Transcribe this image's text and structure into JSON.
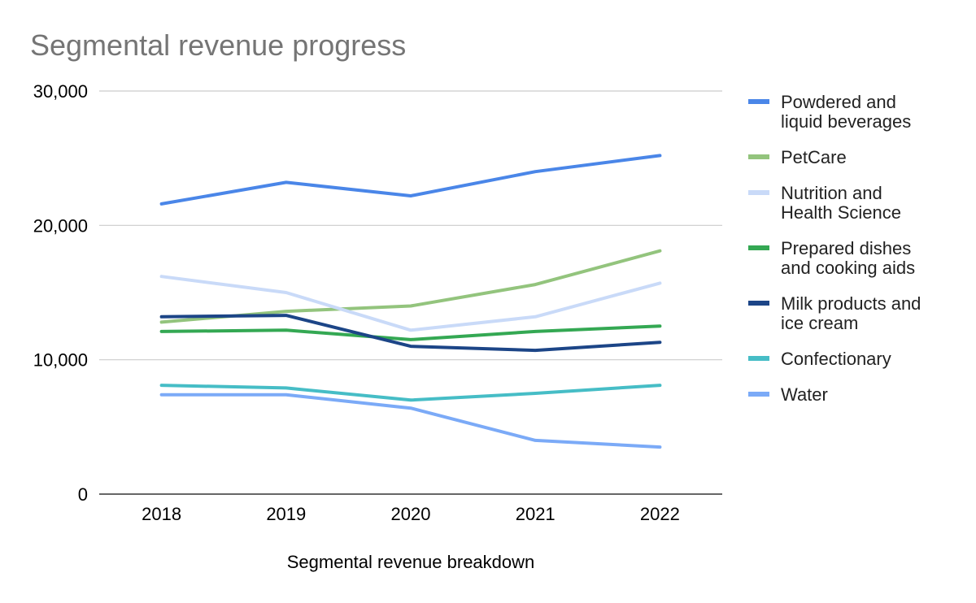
{
  "chart_data": {
    "type": "line",
    "title": "Segmental revenue progress",
    "xlabel": "Segmental revenue breakdown",
    "ylabel": "",
    "categories": [
      "2018",
      "2019",
      "2020",
      "2021",
      "2022"
    ],
    "ylim": [
      0,
      30000
    ],
    "yticks": [
      {
        "value": 0,
        "label": "0"
      },
      {
        "value": 10000,
        "label": "10,000"
      },
      {
        "value": 20000,
        "label": "20,000"
      },
      {
        "value": 30000,
        "label": "30,000"
      }
    ],
    "grid": true,
    "legend_position": "right",
    "series": [
      {
        "name": "Powdered and liquid beverages",
        "legend_lines": [
          "Powdered and",
          "liquid beverages"
        ],
        "color": "#4a86e8",
        "values": [
          21600,
          23200,
          22200,
          24000,
          25200
        ]
      },
      {
        "name": "PetCare",
        "legend_lines": [
          "PetCare"
        ],
        "color": "#93c47d",
        "values": [
          12800,
          13600,
          14000,
          15600,
          18100
        ]
      },
      {
        "name": "Nutrition and Health Science",
        "legend_lines": [
          "Nutrition and",
          "Health Science"
        ],
        "color": "#c9daf8",
        "values": [
          16200,
          15000,
          12200,
          13200,
          15700
        ]
      },
      {
        "name": "Prepared dishes and cooking aids",
        "legend_lines": [
          "Prepared dishes",
          "and cooking aids"
        ],
        "color": "#34a853",
        "values": [
          12100,
          12200,
          11500,
          12100,
          12500
        ]
      },
      {
        "name": "Milk products and ice cream",
        "legend_lines": [
          "Milk products and",
          "ice cream"
        ],
        "color": "#1c4587",
        "values": [
          13200,
          13300,
          11000,
          10700,
          11300
        ]
      },
      {
        "name": "Confectionary",
        "legend_lines": [
          "Confectionary"
        ],
        "color": "#46bdc6",
        "values": [
          8100,
          7900,
          7000,
          7500,
          8100
        ]
      },
      {
        "name": "Water",
        "legend_lines": [
          "Water"
        ],
        "color": "#7baaf7",
        "values": [
          7400,
          7400,
          6400,
          4000,
          3500
        ]
      }
    ]
  }
}
